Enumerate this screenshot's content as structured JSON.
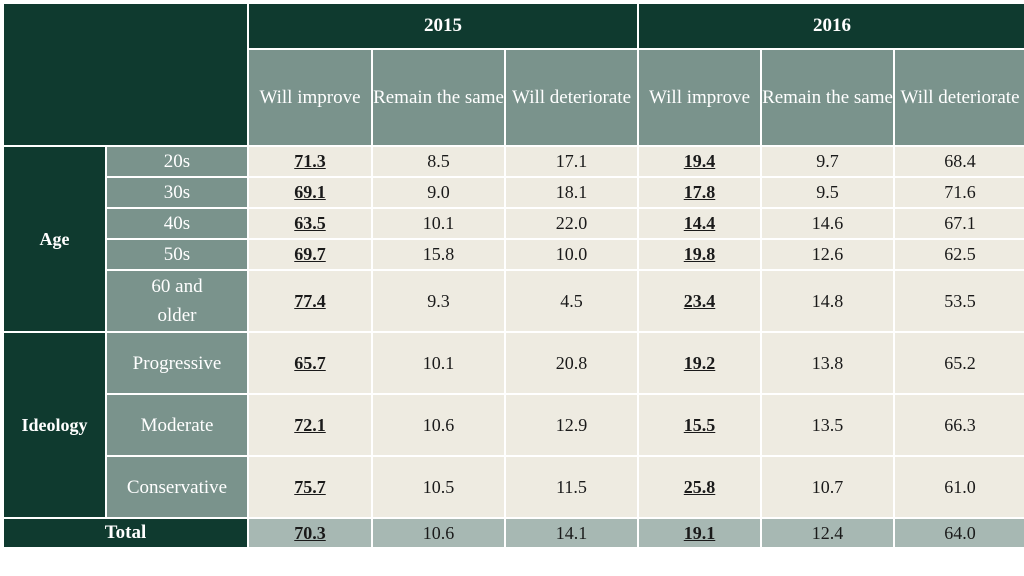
{
  "chart_data": {
    "type": "table",
    "years": [
      "2015",
      "2016"
    ],
    "columns": [
      "Will improve",
      "Remain the same",
      "Will deteriorate"
    ],
    "groups": [
      {
        "label": "Age",
        "rows": [
          {
            "label": "20s",
            "values": [
              "71.3",
              "8.5",
              "17.1",
              "19.4",
              "9.7",
              "68.4"
            ]
          },
          {
            "label": "30s",
            "values": [
              "69.1",
              "9.0",
              "18.1",
              "17.8",
              "9.5",
              "71.6"
            ]
          },
          {
            "label": "40s",
            "values": [
              "63.5",
              "10.1",
              "22.0",
              "14.4",
              "14.6",
              "67.1"
            ]
          },
          {
            "label": "50s",
            "values": [
              "69.7",
              "15.8",
              "10.0",
              "19.8",
              "12.6",
              "62.5"
            ]
          },
          {
            "label": "60 and older",
            "values": [
              "77.4",
              "9.3",
              "4.5",
              "23.4",
              "14.8",
              "53.5"
            ]
          }
        ]
      },
      {
        "label": "Ideology",
        "rows": [
          {
            "label": "Progressive",
            "values": [
              "65.7",
              "10.1",
              "20.8",
              "19.2",
              "13.8",
              "65.2"
            ]
          },
          {
            "label": "Moderate",
            "values": [
              "72.1",
              "10.6",
              "12.9",
              "15.5",
              "13.5",
              "66.3"
            ]
          },
          {
            "label": "Conservative",
            "values": [
              "75.7",
              "10.5",
              "11.5",
              "25.8",
              "10.7",
              "61.0"
            ]
          }
        ]
      }
    ],
    "total": {
      "label": "Total",
      "values": [
        "70.3",
        "10.6",
        "14.1",
        "19.1",
        "12.4",
        "64.0"
      ]
    }
  }
}
